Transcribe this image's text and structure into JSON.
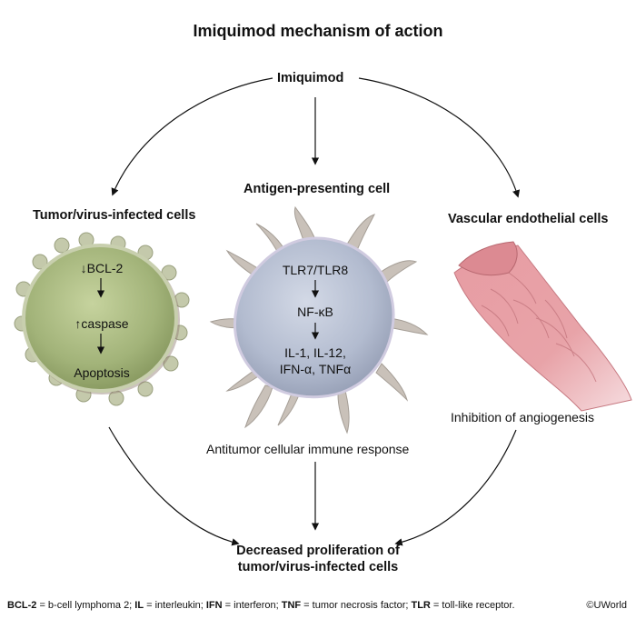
{
  "title": "Imiquimod mechanism of action",
  "top_node": "Imiquimod",
  "left": {
    "heading": "Tumor/virus-infected cells",
    "steps": [
      "↓BCL-2",
      "↑caspase",
      "Apoptosis"
    ]
  },
  "center": {
    "heading": "Antigen-presenting cell",
    "steps": [
      "TLR7/TLR8",
      "NF-κB"
    ],
    "cytokines_line1": "IL-1, IL-12,",
    "cytokines_line2": "IFN-α, TNFα",
    "caption": "Antitumor cellular immune response"
  },
  "right": {
    "heading": "Vascular endothelial cells",
    "caption": "Inhibition of angiogenesis"
  },
  "bottom": {
    "line1": "Decreased proliferation of",
    "line2": "tumor/virus-infected cells"
  },
  "footer": [
    {
      "abbr": "BCL-2",
      "def": " = b-cell lymphoma 2;  "
    },
    {
      "abbr": "IL",
      "def": " = interleukin; "
    },
    {
      "abbr": "IFN",
      "def": " = interferon; "
    },
    {
      "abbr": "TNF",
      "def": " = tumor necrosis factor; "
    },
    {
      "abbr": "TLR",
      "def": " = toll-like receptor."
    }
  ],
  "copyright": "©UWorld",
  "colors": {
    "tumor_cell": "#a3b47a",
    "apc_cell": "#b3bccf",
    "vessel": "#e39aa0",
    "arrow": "#111111"
  }
}
